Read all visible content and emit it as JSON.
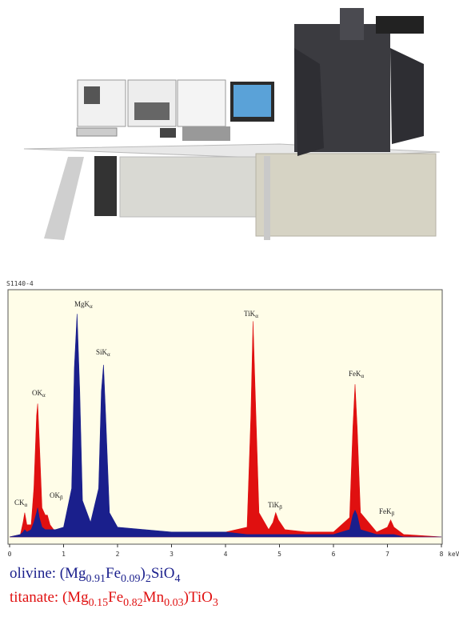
{
  "chart_data": {
    "type": "area",
    "title": "S1140-4",
    "xlabel": "keV",
    "xlim": [
      0,
      8
    ],
    "xticks": [
      0,
      1,
      2,
      3,
      4,
      5,
      6,
      7,
      8
    ],
    "ylim": [
      -3,
      102
    ],
    "background": "#fffde8",
    "x": [
      0,
      0.2,
      0.25,
      0.28,
      0.32,
      0.4,
      0.45,
      0.5,
      0.52,
      0.55,
      0.6,
      0.66,
      0.7,
      0.75,
      0.85,
      1.0,
      1.15,
      1.2,
      1.25,
      1.3,
      1.35,
      1.5,
      1.65,
      1.7,
      1.74,
      1.78,
      1.85,
      2.0,
      2.5,
      3.0,
      3.5,
      4.0,
      4.4,
      4.47,
      4.51,
      4.55,
      4.62,
      4.8,
      4.88,
      4.93,
      4.98,
      5.1,
      5.5,
      6.0,
      6.3,
      6.36,
      6.4,
      6.44,
      6.5,
      6.8,
      7.0,
      7.06,
      7.12,
      7.3,
      8.0
    ],
    "series": [
      {
        "name": "titanate",
        "color": "#e01010",
        "formula": [
          {
            "text": ": (Mg"
          },
          {
            "text": "0.15",
            "sub": true
          },
          {
            "text": "Fe"
          },
          {
            "text": "0.82",
            "sub": true
          },
          {
            "text": "Mn"
          },
          {
            "text": "0.03",
            "sub": true
          },
          {
            "text": ")TiO"
          },
          {
            "text": "3",
            "sub": true
          }
        ],
        "values": [
          0,
          1,
          6,
          10,
          5,
          5,
          20,
          50,
          55,
          40,
          12,
          9,
          9,
          5,
          2,
          2,
          4,
          10,
          14,
          10,
          4,
          2,
          3,
          6,
          8,
          6,
          3,
          2,
          1,
          1,
          1,
          2,
          4,
          50,
          89,
          60,
          10,
          3,
          6,
          10,
          7,
          3,
          2,
          2,
          8,
          45,
          63,
          45,
          10,
          2,
          4,
          7,
          4,
          1,
          0
        ]
      },
      {
        "name": "olivine",
        "color": "#1a1f8c",
        "formula": [
          {
            "text": ": (Mg"
          },
          {
            "text": "0.91",
            "sub": true
          },
          {
            "text": "Fe"
          },
          {
            "text": "0.09",
            "sub": true
          },
          {
            "text": ")"
          },
          {
            "text": "2",
            "sub": true
          },
          {
            "text": "SiO"
          },
          {
            "text": "4",
            "sub": true
          }
        ],
        "values": [
          0,
          1,
          2,
          3,
          2,
          3,
          6,
          10,
          12,
          8,
          4,
          3,
          3,
          3,
          3,
          4,
          20,
          70,
          92,
          60,
          15,
          6,
          20,
          60,
          71,
          50,
          10,
          4,
          3,
          2,
          2,
          2,
          1,
          1,
          1,
          1,
          1,
          1,
          1,
          1,
          1,
          1,
          1,
          1,
          3,
          9,
          11,
          9,
          3,
          1,
          1,
          1,
          1,
          0,
          0
        ]
      }
    ],
    "annotations": [
      {
        "text": "CK",
        "sub": "α"
      },
      {
        "text": "OK",
        "sub": "α"
      },
      {
        "text": "OK",
        "sub": "β"
      },
      {
        "text": "MgK",
        "sub": "α"
      },
      {
        "text": "SiK",
        "sub": "α"
      },
      {
        "text": "TiK",
        "sub": "α"
      },
      {
        "text": "TiK",
        "sub": "β"
      },
      {
        "text": "FeK",
        "sub": "α"
      },
      {
        "text": "FeK",
        "sub": "β"
      }
    ]
  }
}
